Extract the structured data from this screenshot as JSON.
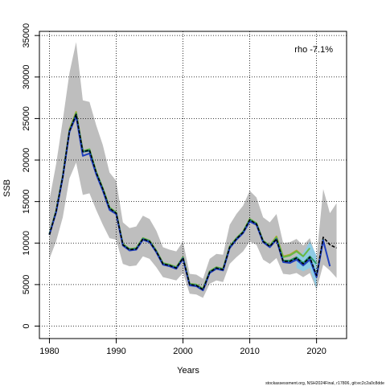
{
  "chart_data": {
    "type": "line",
    "xlabel": "Years",
    "ylabel": "SSB",
    "annotation": "rho -7.1%",
    "footer": "stockassessment.org, NSH2024Final, r17806, git:ec2c2a0c8dde",
    "xlim": [
      1978.5,
      2024.5
    ],
    "ylim": [
      -1500,
      35500
    ],
    "x_ticks": [
      1980,
      1990,
      2000,
      2010,
      2020
    ],
    "y_ticks": [
      0,
      5000,
      10000,
      15000,
      20000,
      25000,
      30000,
      35000
    ],
    "grid": true,
    "colors": {
      "band": "#bebebe",
      "retro_band": "#87ceeb",
      "final_assessment": "#000000"
    },
    "series": [
      {
        "x": [
          1980,
          1981,
          1982,
          1983,
          1984,
          1985,
          1986,
          1987,
          1988,
          1989,
          1990,
          1991,
          1992,
          1993,
          1994,
          1995,
          1996,
          1997,
          1998,
          1999,
          2000,
          2001,
          2002,
          2003,
          2004,
          2005,
          2006,
          2007,
          2008,
          2009,
          2010,
          2011,
          2012,
          2013,
          2014,
          2015,
          2016,
          2017,
          2018,
          2019,
          2020,
          2021,
          2022,
          2023
        ],
        "y": [
          11000,
          13800,
          18000,
          23500,
          25500,
          21000,
          21200,
          18500,
          16500,
          14200,
          13600,
          9800,
          9200,
          9300,
          10500,
          10200,
          9000,
          7500,
          7300,
          7000,
          8200,
          5000,
          4900,
          4400,
          6500,
          7000,
          6800,
          9500,
          10500,
          11300,
          12800,
          12300,
          10200,
          9600,
          10500,
          7800,
          7800,
          8200,
          7500,
          8300,
          6100,
          10700,
          9800,
          9400
        ],
        "upper": [
          15200,
          19500,
          24800,
          30500,
          34200,
          27200,
          27000,
          24200,
          21800,
          18500,
          17500,
          12500,
          11800,
          12000,
          13300,
          12900,
          11500,
          9500,
          9200,
          9000,
          10200,
          6300,
          6200,
          5700,
          8100,
          8700,
          8600,
          12200,
          13500,
          14500,
          16300,
          15500,
          13100,
          12500,
          13500,
          10000,
          10100,
          10500,
          9700,
          10600,
          8200,
          16500,
          13600,
          14800
        ],
        "lower": [
          8100,
          10200,
          13100,
          17800,
          19700,
          15800,
          16000,
          14000,
          12200,
          10600,
          10400,
          7500,
          7200,
          7300,
          8400,
          8100,
          7100,
          5900,
          5700,
          5500,
          6400,
          3900,
          3800,
          3400,
          5100,
          5500,
          5300,
          7500,
          8300,
          9000,
          10200,
          9800,
          8000,
          7500,
          8200,
          6300,
          6200,
          6400,
          5900,
          6400,
          4400,
          7400,
          6700,
          5800
        ]
      },
      {
        "x": [
          1980,
          1981,
          1982,
          1983,
          1984,
          1985,
          1986,
          1987,
          1988,
          1989,
          1990,
          1991,
          1992,
          1993,
          1994,
          1995,
          1996,
          1997,
          1998,
          1999,
          2000,
          2001,
          2002,
          2003,
          2004,
          2005,
          2006,
          2007,
          2008,
          2009,
          2010,
          2011,
          2012,
          2013,
          2014,
          2015,
          2016,
          2017,
          2018,
          2019,
          2020,
          2021,
          2022
        ],
        "y": [
          11000,
          13700,
          17900,
          23400,
          25300,
          20500,
          20800,
          18300,
          16300,
          14000,
          13500,
          9700,
          9100,
          9200,
          10400,
          10100,
          8900,
          7400,
          7200,
          6900,
          8100,
          4900,
          4800,
          4300,
          6400,
          6900,
          6700,
          9400,
          10400,
          11200,
          12600,
          12200,
          10100,
          9500,
          10400,
          7700,
          7600,
          8000,
          7300,
          8000,
          5900,
          10300,
          7200
        ],
        "color": "#1f3fbf"
      },
      {
        "x": [
          1980,
          1981,
          1982,
          1983,
          1984,
          1985,
          1986,
          1987,
          1988,
          1989,
          1990,
          1991,
          1992,
          1993,
          1994,
          1995,
          1996,
          1997,
          1998,
          1999,
          2000,
          2001,
          2002,
          2003,
          2004,
          2005,
          2006,
          2007,
          2008,
          2009,
          2010,
          2011,
          2012,
          2013,
          2014,
          2015,
          2016,
          2017,
          2018,
          2019,
          2020,
          2021
        ],
        "y": [
          11050,
          13800,
          18050,
          23500,
          25500,
          21000,
          21100,
          18400,
          16400,
          14100,
          13600,
          9800,
          9200,
          9300,
          10500,
          10200,
          9000,
          7500,
          7300,
          7000,
          8200,
          5000,
          4900,
          4400,
          6500,
          7000,
          6800,
          9500,
          10500,
          11300,
          12700,
          12300,
          10200,
          9600,
          10500,
          7800,
          7700,
          8100,
          7400,
          8200,
          6000,
          10500
        ],
        "color": "#1a6b8a"
      },
      {
        "x": [
          1980,
          1981,
          1982,
          1983,
          1984,
          1985,
          1986,
          1987,
          1988,
          1989,
          1990,
          1991,
          1992,
          1993,
          1994,
          1995,
          1996,
          1997,
          1998,
          1999,
          2000,
          2001,
          2002,
          2003,
          2004,
          2005,
          2006,
          2007,
          2008,
          2009,
          2010,
          2011,
          2012,
          2013,
          2014,
          2015,
          2016,
          2017,
          2018,
          2019,
          2020
        ],
        "y": [
          11050,
          13800,
          18000,
          23500,
          25500,
          21000,
          21200,
          18500,
          16500,
          14200,
          13600,
          9800,
          9200,
          9300,
          10500,
          10200,
          9000,
          7500,
          7300,
          7000,
          8200,
          5000,
          4900,
          4400,
          6500,
          7000,
          6800,
          9500,
          10500,
          11300,
          12800,
          12300,
          10200,
          9600,
          10500,
          7900,
          7900,
          8300,
          7600,
          8400,
          7500
        ],
        "color": "#2a9a6a"
      },
      {
        "x": [
          1980,
          1981,
          1982,
          1983,
          1984,
          1985,
          1986,
          1987,
          1988,
          1989,
          1990,
          1991,
          1992,
          1993,
          1994,
          1995,
          1996,
          1997,
          1998,
          1999,
          2000,
          2001,
          2002,
          2003,
          2004,
          2005,
          2006,
          2007,
          2008,
          2009,
          2010,
          2011,
          2012,
          2013,
          2014,
          2015,
          2016,
          2017,
          2018,
          2019
        ],
        "y": [
          11100,
          13900,
          18100,
          23600,
          25700,
          21100,
          21300,
          18600,
          16600,
          14300,
          13700,
          9900,
          9300,
          9400,
          10600,
          10300,
          9100,
          7600,
          7400,
          7100,
          8300,
          5100,
          5000,
          4500,
          6600,
          7100,
          6900,
          9600,
          10600,
          11400,
          12900,
          12400,
          10300,
          9700,
          10700,
          8300,
          8500,
          9000,
          8400,
          9400
        ],
        "color": "#66b845"
      },
      {
        "x": [
          1980,
          1981,
          1982,
          1983,
          1984,
          1985,
          1986,
          1987,
          1988,
          1989,
          1990,
          1991,
          1992,
          1993,
          1994,
          1995,
          1996,
          1997,
          1998,
          1999,
          2000,
          2001,
          2002,
          2003,
          2004,
          2005,
          2006,
          2007,
          2008,
          2009,
          2010,
          2011,
          2012,
          2013,
          2014,
          2015,
          2016,
          2017,
          2018
        ],
        "y": [
          11100,
          13900,
          18100,
          23700,
          25800,
          21100,
          21300,
          18600,
          16600,
          14300,
          13700,
          9900,
          9300,
          9400,
          10600,
          10300,
          9100,
          7600,
          7400,
          7100,
          8300,
          5100,
          5000,
          4500,
          6600,
          7100,
          6900,
          9600,
          10600,
          11400,
          12900,
          12400,
          10300,
          9700,
          10800,
          8400,
          8600,
          9100,
          8400
        ],
        "color": "#b5a22a"
      }
    ]
  }
}
